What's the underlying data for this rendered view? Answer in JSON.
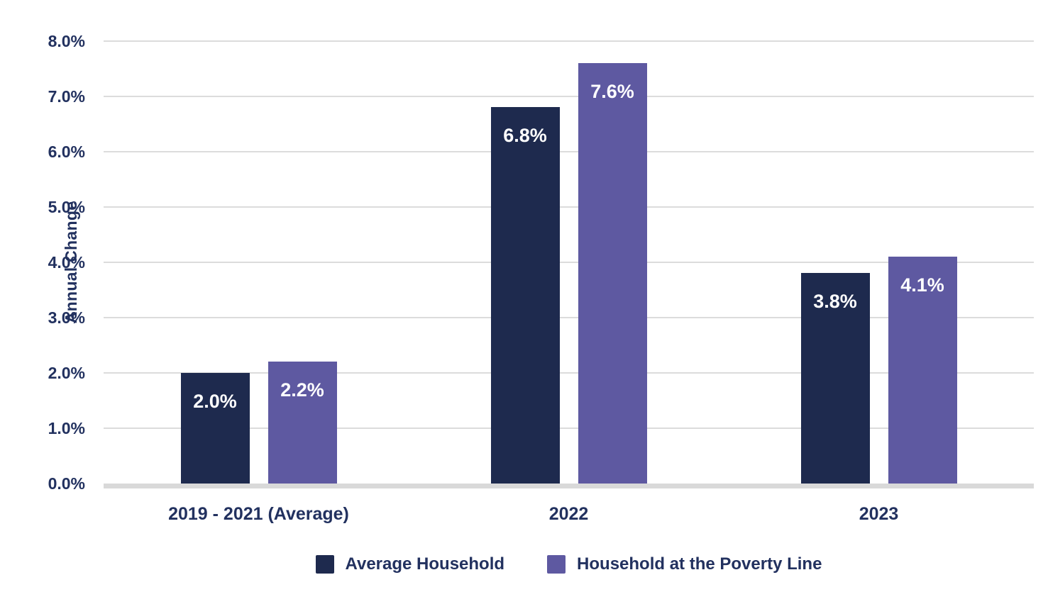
{
  "chart_data": {
    "type": "bar",
    "title": "",
    "xlabel": "",
    "ylabel": "Annual Change",
    "categories": [
      "2019 - 2021 (Average)",
      "2022",
      "2023"
    ],
    "series": [
      {
        "name": "Average Household",
        "color": "#1e2a4e",
        "values": [
          2.0,
          6.8,
          3.8
        ],
        "value_labels": [
          "2.0%",
          "6.8%",
          "3.8%"
        ]
      },
      {
        "name": "Household at the Poverty Line",
        "color": "#5e59a1",
        "values": [
          2.2,
          7.6,
          4.1
        ],
        "value_labels": [
          "2.2%",
          "7.6%",
          "4.1%"
        ]
      }
    ],
    "y_axis": {
      "ylim": [
        0,
        8
      ],
      "tick_values": [
        0,
        1,
        2,
        3,
        4,
        5,
        6,
        7,
        8
      ],
      "tick_labels": [
        "0.0%",
        "1.0%",
        "2.0%",
        "3.0%",
        "4.0%",
        "5.0%",
        "6.0%",
        "7.0%",
        "8.0%"
      ]
    },
    "grid": true,
    "legend_position": "bottom",
    "colors": {
      "text": "#22315f",
      "gridline": "#dcdcdc",
      "baseline": "#d9d9d9",
      "value_label_text": "#ffffff",
      "background": "#ffffff"
    }
  }
}
